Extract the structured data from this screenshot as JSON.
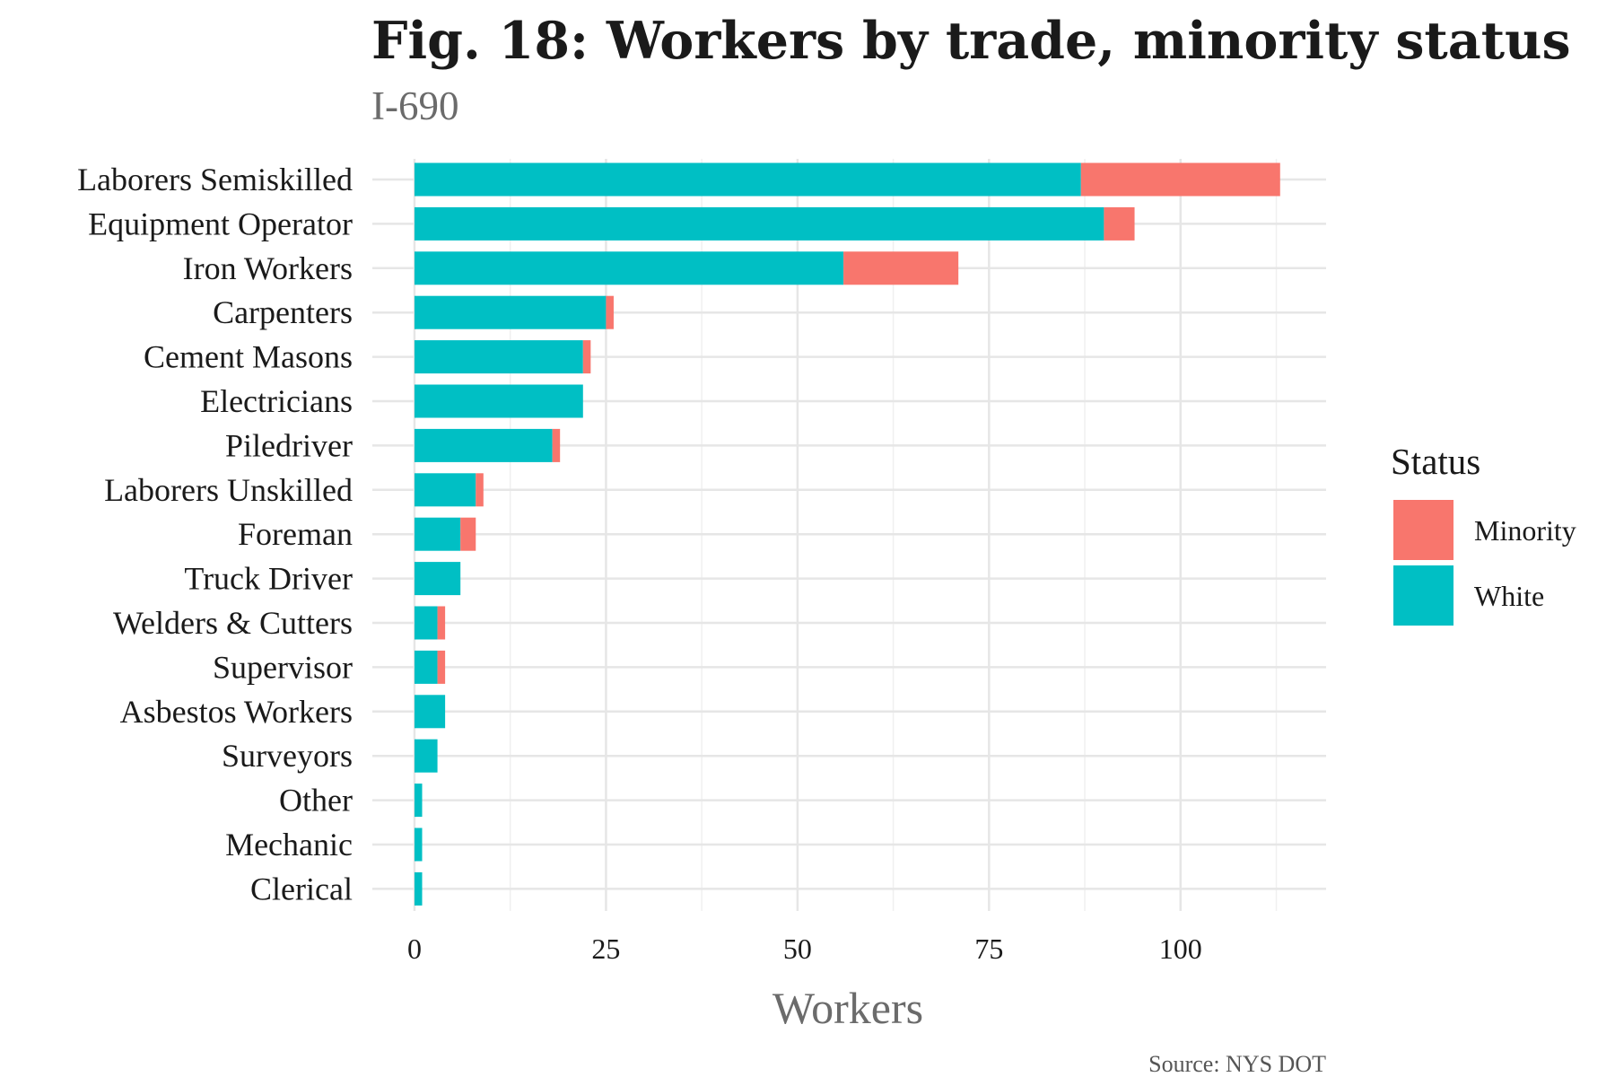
{
  "chart_data": {
    "type": "bar",
    "orientation": "horizontal",
    "stacked": true,
    "title": "Fig. 18: Workers by trade, minority status",
    "subtitle": "I-690",
    "xlabel": "Workers",
    "ylabel": "",
    "caption": "Source: NYS DOT",
    "xlim": [
      -5.5,
      119
    ],
    "xticks": [
      0,
      25,
      50,
      75,
      100
    ],
    "grid": true,
    "legend": {
      "title": "Status",
      "position": "right",
      "entries": [
        "Minority",
        "White"
      ]
    },
    "categories": [
      "Laborers Semiskilled",
      "Equipment Operator",
      "Iron Workers",
      "Carpenters",
      "Cement Masons",
      "Electricians",
      "Piledriver",
      "Laborers Unskilled",
      "Foreman",
      "Truck Driver",
      "Welders & Cutters",
      "Supervisor",
      "Asbestos Workers",
      "Surveyors",
      "Other",
      "Mechanic",
      "Clerical"
    ],
    "series": [
      {
        "name": "White",
        "color": "#00BFC4",
        "values": [
          87,
          90,
          56,
          25,
          22,
          22,
          18,
          8,
          6,
          6,
          3,
          3,
          4,
          3,
          1,
          1,
          1
        ]
      },
      {
        "name": "Minority",
        "color": "#F8766D",
        "values": [
          26,
          4,
          15,
          1,
          1,
          0,
          1,
          1,
          2,
          0,
          1,
          1,
          0,
          0,
          0,
          0,
          0
        ]
      }
    ]
  }
}
